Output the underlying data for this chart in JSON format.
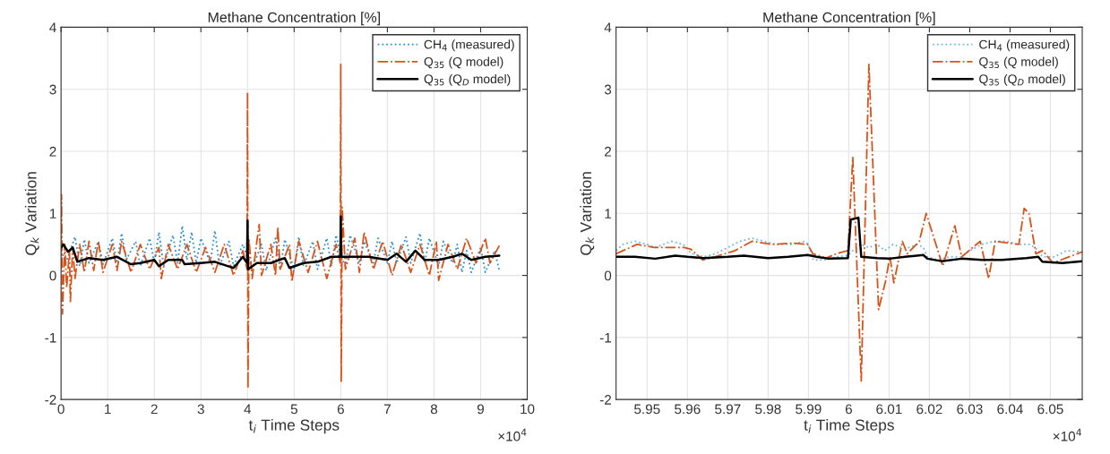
{
  "chart_data": [
    {
      "type": "line",
      "title": "Methane Concentration [%]",
      "xlabel": "t$_{i}$ Time Steps",
      "ylabel": "Q$_{k}$ Variation",
      "xlim": [
        0,
        10
      ],
      "xticks": [
        0,
        1,
        2,
        3,
        4,
        5,
        6,
        7,
        8,
        9,
        10
      ],
      "ylim": [
        -2,
        4
      ],
      "yticks": [
        -2,
        -1,
        0,
        1,
        2,
        3,
        4
      ],
      "grid": true,
      "legend": "top right",
      "annotations": [
        "×10$^{4}$"
      ],
      "series": [
        {
          "name": "CH$_{4}$ (measured)",
          "color": "#2f8fd0",
          "line_style": "dotted",
          "x": [
            0,
            0.1,
            0.3,
            0.4,
            0.5,
            0.6,
            0.8,
            0.9,
            1.1,
            1.2,
            1.3,
            1.4,
            1.6,
            1.7,
            1.9,
            2.0,
            2.1,
            2.2,
            2.4,
            2.5,
            2.6,
            2.7,
            2.8,
            2.9,
            3.0,
            3.2,
            3.3,
            3.4,
            3.6,
            3.7,
            3.9,
            4.0,
            4.1,
            4.3,
            4.4,
            4.6,
            4.7,
            4.8,
            5.0,
            5.1,
            5.2,
            5.4,
            5.5,
            5.7,
            5.8,
            5.9,
            6.0,
            6.1,
            6.2,
            6.4,
            6.5,
            6.7,
            6.8,
            7.0,
            7.1,
            7.2,
            7.4,
            7.5,
            7.7,
            7.8,
            7.9,
            8.1,
            8.2,
            8.4,
            8.5,
            8.6,
            8.7,
            8.8,
            9.0,
            9.1,
            9.3,
            9.4
          ],
          "values": [
            0.4,
            0.2,
            0.62,
            0.15,
            0.58,
            0.2,
            0.55,
            0.18,
            0.6,
            0.2,
            0.68,
            0.25,
            0.55,
            0.15,
            0.6,
            0.2,
            0.7,
            0.15,
            0.65,
            0.2,
            0.8,
            0.25,
            0.7,
            0.2,
            0.6,
            0.2,
            0.72,
            0.15,
            0.55,
            0.15,
            0.5,
            0.3,
            0.12,
            0.5,
            0.08,
            0.6,
            0.1,
            0.58,
            0.1,
            0.62,
            0.15,
            0.55,
            0.1,
            0.6,
            0.15,
            0.65,
            0.3,
            0.15,
            0.65,
            0.2,
            0.55,
            0.2,
            0.6,
            0.2,
            0.55,
            0.2,
            0.62,
            0.2,
            0.68,
            0.2,
            0.6,
            0.15,
            0.55,
            0.2,
            0.5,
            0.05,
            0.4,
            0.05,
            0.45,
            0.05,
            0.4,
            0.08
          ]
        },
        {
          "name": "Q$_{35}$ (Q model)",
          "color": "#d95319",
          "line_style": "dashdot",
          "x": [
            0,
            0.01,
            0.03,
            0.08,
            0.12,
            0.18,
            0.2,
            0.25,
            0.3,
            0.4,
            0.5,
            0.6,
            0.7,
            0.8,
            0.9,
            1.1,
            1.2,
            1.3,
            1.5,
            1.7,
            1.9,
            2.1,
            2.15,
            2.3,
            2.5,
            2.7,
            2.9,
            3.1,
            3.3,
            3.5,
            3.7,
            3.9,
            3.99,
            4.0,
            4.01,
            4.03,
            4.1,
            4.2,
            4.25,
            4.3,
            4.5,
            4.6,
            4.65,
            4.7,
            4.9,
            4.95,
            5.1,
            5.3,
            5.5,
            5.7,
            5.9,
            5.99,
            6.0,
            6.01,
            6.03,
            6.1,
            6.3,
            6.4,
            6.5,
            6.7,
            6.9,
            7.1,
            7.3,
            7.5,
            7.7,
            7.9,
            8.05,
            8.1,
            8.3,
            8.5,
            8.7,
            8.9,
            9.1,
            9.2,
            9.4
          ],
          "values": [
            0.1,
            1.3,
            -0.62,
            0.5,
            -0.2,
            0.4,
            -0.42,
            0.45,
            -0.05,
            0.5,
            0.05,
            0.55,
            0.08,
            0.55,
            0.05,
            0.5,
            0.08,
            0.55,
            0.05,
            0.5,
            0.1,
            0.45,
            -0.05,
            0.5,
            0.1,
            0.5,
            0.05,
            0.45,
            0.05,
            0.5,
            0.0,
            0.4,
            0.1,
            2.95,
            -1.82,
            0.6,
            -0.05,
            0.55,
            0.82,
            0.0,
            0.5,
            0.0,
            0.78,
            0.1,
            0.5,
            -0.1,
            0.55,
            0.05,
            0.55,
            -0.05,
            0.5,
            0.2,
            3.4,
            -1.72,
            1.1,
            0.1,
            0.6,
            0.05,
            0.7,
            0.1,
            0.55,
            0.0,
            0.5,
            0.05,
            0.5,
            0.0,
            0.55,
            -0.08,
            0.5,
            0.1,
            0.6,
            0.2,
            0.6,
            0.2,
            0.48
          ]
        },
        {
          "name": "Q$_{35}$ (Q$_{D}$ model)",
          "color": "#000000",
          "line_style": "solid",
          "x": [
            0,
            0.05,
            0.15,
            0.25,
            0.35,
            0.6,
            0.9,
            1.2,
            1.5,
            1.7,
            2.0,
            2.1,
            2.3,
            2.6,
            2.65,
            3.0,
            3.3,
            3.7,
            3.9,
            3.99,
            4.0,
            4.01,
            4.2,
            4.5,
            4.8,
            4.9,
            5.2,
            5.5,
            5.8,
            5.99,
            6.0,
            6.01,
            6.3,
            6.6,
            7.0,
            7.2,
            7.4,
            7.6,
            7.8,
            8.1,
            8.4,
            8.6,
            8.8,
            9.1,
            9.4
          ],
          "values": [
            0.45,
            0.5,
            0.38,
            0.45,
            0.22,
            0.28,
            0.25,
            0.3,
            0.18,
            0.2,
            0.25,
            0.15,
            0.25,
            0.25,
            0.18,
            0.2,
            0.22,
            0.12,
            0.3,
            0.2,
            0.88,
            0.1,
            0.2,
            0.2,
            0.28,
            0.12,
            0.2,
            0.22,
            0.3,
            0.3,
            0.95,
            0.3,
            0.3,
            0.3,
            0.25,
            0.35,
            0.22,
            0.4,
            0.25,
            0.25,
            0.3,
            0.35,
            0.25,
            0.3,
            0.32
          ]
        }
      ]
    },
    {
      "type": "line",
      "title": "Methane Concentration [%]",
      "xlabel": "t$_{i}$ Time Steps",
      "ylabel": "Q$_{k}$ Variation",
      "xlim": [
        5.9423,
        6.0579
      ],
      "xticks": [
        5.95,
        5.96,
        5.97,
        5.98,
        5.99,
        6,
        6.01,
        6.02,
        6.03,
        6.04,
        6.05
      ],
      "ylim": [
        -2,
        4
      ],
      "yticks": [
        -2,
        -1,
        0,
        1,
        2,
        3,
        4
      ],
      "grid": true,
      "legend": "top right",
      "annotations": [
        "×10$^{4}$"
      ],
      "series": [
        {
          "name": "CH$_{4}$ (measured)",
          "color": "#6fb8e6",
          "line_style": "dotted",
          "x": [
            5.9423,
            5.944,
            5.947,
            5.95,
            5.952,
            5.954,
            5.956,
            5.959,
            5.961,
            5.964,
            5.967,
            5.97,
            5.973,
            5.976,
            5.979,
            5.982,
            5.986,
            5.989,
            5.99,
            5.9912,
            5.994,
            5.997,
            5.9998,
            6.001,
            6.003,
            6.005,
            6.007,
            6.009,
            6.011,
            6.013,
            6.015,
            6.017,
            6.0185,
            6.0195,
            6.022,
            6.025,
            6.028,
            6.03,
            6.033,
            6.036,
            6.039,
            6.042,
            6.045,
            6.047,
            6.048,
            6.051,
            6.054,
            6.0579
          ],
          "values": [
            0.4,
            0.5,
            0.55,
            0.5,
            0.45,
            0.5,
            0.55,
            0.5,
            0.35,
            0.3,
            0.35,
            0.45,
            0.55,
            0.6,
            0.55,
            0.5,
            0.5,
            0.55,
            0.5,
            0.25,
            0.25,
            0.3,
            0.32,
            0.4,
            0.5,
            0.45,
            0.5,
            0.4,
            0.5,
            0.45,
            0.45,
            0.5,
            0.45,
            0.3,
            0.25,
            0.3,
            0.3,
            0.4,
            0.5,
            0.55,
            0.55,
            0.5,
            0.5,
            0.4,
            0.3,
            0.3,
            0.4,
            0.38
          ]
        },
        {
          "name": "Q$_{35}$ (Q model)",
          "color": "#d95319",
          "line_style": "dashdot",
          "x": [
            5.9423,
            5.9475,
            5.9517,
            5.9592,
            5.9609,
            5.9638,
            5.9668,
            5.9718,
            5.976,
            5.981,
            5.986,
            5.9898,
            5.9911,
            5.9944,
            5.9969,
            5.9998,
            6.001,
            6.0031,
            6.005,
            6.0074,
            6.0091,
            6.0102,
            6.0112,
            6.0133,
            6.0145,
            6.0175,
            6.0192,
            6.0221,
            6.0233,
            6.0263,
            6.028,
            6.0326,
            6.0347,
            6.0363,
            6.0422,
            6.0435,
            6.0447,
            6.0464,
            6.0481,
            6.0506,
            6.0579
          ],
          "values": [
            0.35,
            0.5,
            0.45,
            0.45,
            0.42,
            0.25,
            0.3,
            0.4,
            0.55,
            0.5,
            0.52,
            0.5,
            0.35,
            0.28,
            0.35,
            0.4,
            1.9,
            -1.7,
            3.4,
            -0.55,
            -0.1,
            0.3,
            -0.12,
            0.55,
            0.35,
            0.55,
            1.0,
            0.4,
            0.15,
            0.8,
            0.3,
            0.55,
            -0.05,
            0.55,
            0.5,
            1.08,
            1.0,
            0.35,
            0.4,
            0.2,
            0.38
          ]
        },
        {
          "name": "Q$_{35}$ (Q$_{D}$ model)",
          "color": "#000000",
          "line_style": "solid",
          "x": [
            5.9423,
            5.947,
            5.952,
            5.957,
            5.96,
            5.964,
            5.97,
            5.974,
            5.98,
            5.985,
            5.9898,
            5.992,
            5.995,
            5.9998,
            6.0005,
            6.0024,
            6.0031,
            6.007,
            6.01,
            6.014,
            6.0185,
            6.0195,
            6.023,
            6.028,
            6.033,
            6.038,
            6.044,
            6.047,
            6.048,
            6.053,
            6.0579
          ],
          "values": [
            0.3,
            0.3,
            0.27,
            0.32,
            0.3,
            0.28,
            0.3,
            0.32,
            0.28,
            0.3,
            0.33,
            0.3,
            0.27,
            0.28,
            0.9,
            0.93,
            0.3,
            0.28,
            0.27,
            0.3,
            0.33,
            0.27,
            0.23,
            0.27,
            0.25,
            0.25,
            0.28,
            0.3,
            0.22,
            0.2,
            0.23
          ]
        }
      ]
    }
  ]
}
